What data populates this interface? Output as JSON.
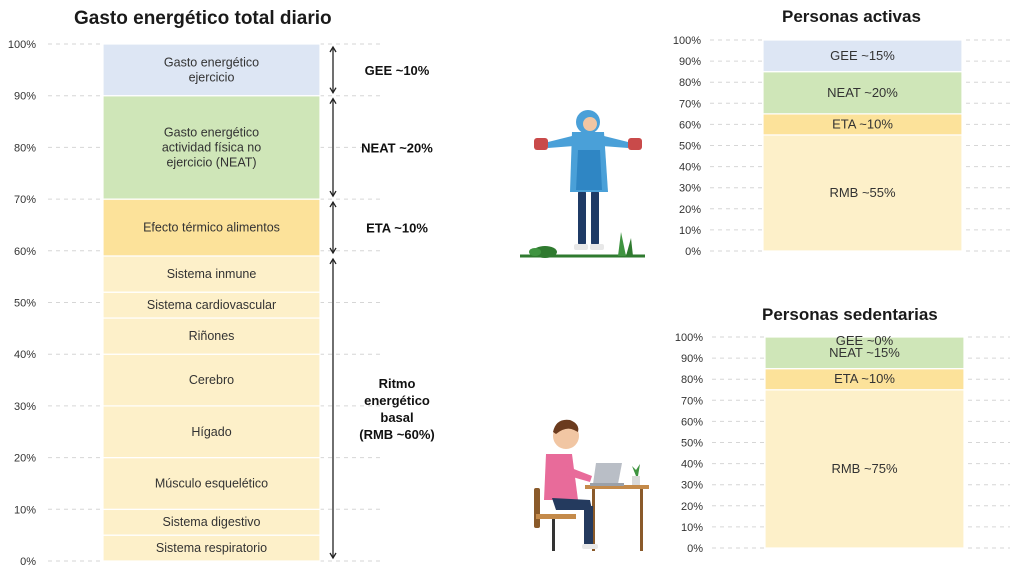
{
  "chart_data": [
    {
      "type": "bar",
      "title": "Gasto energético total diario",
      "stacked": true,
      "ylim": [
        0,
        100
      ],
      "yticks": [
        "0%",
        "10%",
        "20%",
        "30%",
        "40%",
        "50%",
        "60%",
        "70%",
        "80%",
        "90%",
        "100%"
      ],
      "grid": true,
      "segments": [
        {
          "label": "Sistema respiratorio",
          "from": 0,
          "to": 5,
          "color": "#fdf0c9"
        },
        {
          "label": "Sistema digestivo",
          "from": 5,
          "to": 10,
          "color": "#fdf0c9"
        },
        {
          "label": "Músculo esquelético",
          "from": 10,
          "to": 20,
          "color": "#fdf0c9"
        },
        {
          "label": "Hígado",
          "from": 20,
          "to": 30,
          "color": "#fdf0c9"
        },
        {
          "label": "Cerebro",
          "from": 30,
          "to": 40,
          "color": "#fdf0c9"
        },
        {
          "label": "Riñones",
          "from": 40,
          "to": 47,
          "color": "#fdf0c9"
        },
        {
          "label": "Sistema cardiovascular",
          "from": 47,
          "to": 52,
          "color": "#fdf0c9"
        },
        {
          "label": "Sistema inmune",
          "from": 52,
          "to": 59,
          "color": "#fdf0c9"
        },
        {
          "label": "Efecto térmico alimentos",
          "from": 59,
          "to": 70,
          "color": "#fce29a"
        },
        {
          "label": "Gasto energético actividad física no ejercicio (NEAT)",
          "from": 70,
          "to": 90,
          "color": "#cfe6b8"
        },
        {
          "label": "Gasto energético ejercicio",
          "from": 90,
          "to": 100,
          "color": "#dde6f4"
        }
      ],
      "annotations": [
        {
          "label": "GEE ~10%",
          "from": 90,
          "to": 100
        },
        {
          "label": "NEAT ~20%",
          "from": 70,
          "to": 90
        },
        {
          "label": "ETA ~10%",
          "from": 59,
          "to": 70
        },
        {
          "label": "Ritmo energético basal (RMB ~60%)",
          "from": 0,
          "to": 59
        }
      ]
    },
    {
      "type": "bar",
      "title": "Personas activas",
      "stacked": true,
      "ylim": [
        0,
        100
      ],
      "yticks": [
        "0%",
        "10%",
        "20%",
        "30%",
        "40%",
        "50%",
        "60%",
        "70%",
        "80%",
        "90%",
        "100%"
      ],
      "grid": true,
      "segments": [
        {
          "label": "RMB ~55%",
          "from": 0,
          "to": 55,
          "color": "#fdf0c9"
        },
        {
          "label": "ETA ~10%",
          "from": 55,
          "to": 65,
          "color": "#fce29a"
        },
        {
          "label": "NEAT ~20%",
          "from": 65,
          "to": 85,
          "color": "#cfe6b8"
        },
        {
          "label": "GEE ~15%",
          "from": 85,
          "to": 100,
          "color": "#dde6f4"
        }
      ]
    },
    {
      "type": "bar",
      "title": "Personas sedentarias",
      "stacked": true,
      "ylim": [
        0,
        100
      ],
      "yticks": [
        "0%",
        "10%",
        "20%",
        "30%",
        "40%",
        "50%",
        "60%",
        "70%",
        "80%",
        "90%",
        "100%"
      ],
      "grid": true,
      "segments": [
        {
          "label": "RMB ~75%",
          "from": 0,
          "to": 75,
          "color": "#fdf0c9"
        },
        {
          "label": "ETA ~10%",
          "from": 75,
          "to": 85,
          "color": "#fce29a"
        },
        {
          "label": "NEAT ~15%",
          "from": 85,
          "to": 100,
          "color": "#cfe6b8"
        },
        {
          "label": "GEE ~0%",
          "from": 100,
          "to": 100,
          "color": "#dde6f4"
        }
      ]
    }
  ],
  "illustrations": {
    "active": "person-exercising-with-dumbbells",
    "sedentary": "person-sitting-at-laptop"
  }
}
